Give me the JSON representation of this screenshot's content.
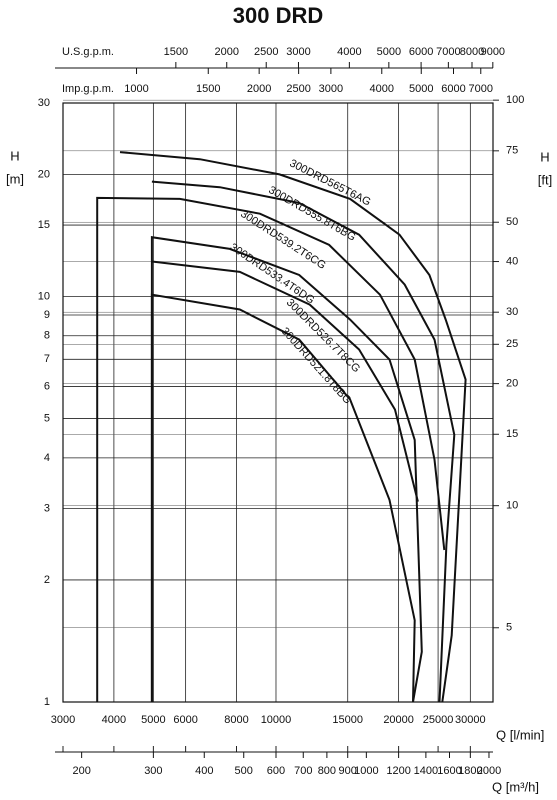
{
  "chart_data": {
    "type": "line",
    "title": "300 DRD",
    "x_label": "Q [l/min]",
    "y_label_symbol": "H",
    "y_label_unit": "[m]",
    "y2_label_symbol": "H",
    "y2_label_unit": "[ft]",
    "log_x": true,
    "log_y": true,
    "grid": true,
    "xlim": [
      3000,
      34100
    ],
    "xticks": [
      3000,
      4000,
      5000,
      6000,
      8000,
      10000,
      15000,
      20000,
      25000,
      30000
    ],
    "ylim": [
      1,
      30
    ],
    "yticks": [
      1,
      2,
      3,
      4,
      5,
      6,
      7,
      8,
      9,
      10,
      15,
      20,
      30
    ],
    "y2lim": [
      3.28,
      98.4
    ],
    "y2ticks": [
      5,
      10,
      15,
      20,
      25,
      30,
      40,
      50,
      75,
      100
    ],
    "top_axes": [
      {
        "label": "U.S.g.p.m.",
        "xlim": [
          792.6,
          9009
        ],
        "xticks": [
          1500,
          2000,
          2500,
          3000,
          4000,
          5000,
          6000,
          7000,
          8000,
          9000
        ]
      },
      {
        "label": "Imp.g.p.m.",
        "xlim": [
          659.9,
          7501
        ],
        "xticks": [
          1000,
          1500,
          2000,
          2500,
          3000,
          4000,
          5000,
          6000,
          7000
        ]
      }
    ],
    "bottom_axis_2": {
      "label": "Q [m³/h]",
      "xlim": [
        180,
        2046
      ],
      "xticks": [
        200,
        300,
        400,
        500,
        600,
        700,
        800,
        900,
        1000,
        1200,
        1400,
        1600,
        1800,
        2000
      ]
    },
    "series": [
      {
        "name": "300DRD565T6AG",
        "color": "#111111",
        "x": [
          4140,
          6500,
          10200,
          15200,
          20100,
          23800,
          26100,
          29200,
          27000,
          25600
        ],
        "values": [
          22.7,
          21.8,
          20.0,
          17.4,
          14.2,
          11.3,
          8.77,
          6.24,
          1.46,
          1
        ]
      },
      {
        "name": "300DRD555.8T6BG",
        "color": "#111111",
        "x": [
          4960,
          7280,
          11400,
          16000,
          20700,
          24500,
          27400,
          26200,
          25200
        ],
        "values": [
          19.2,
          18.6,
          17.0,
          14.2,
          10.7,
          7.83,
          4.56,
          2.44,
          1
        ]
      },
      {
        "name": "300DRD539.2T6CG",
        "color": "#111111",
        "x": [
          3640,
          3640,
          5810,
          9130,
          13500,
          18000,
          21900,
          24500,
          25900
        ],
        "values": [
          1,
          17.5,
          17.4,
          16.0,
          13.4,
          10.1,
          6.99,
          3.96,
          2.37
        ]
      },
      {
        "name": "300DRD533.4T6DG",
        "color": "#111111",
        "x": [
          4960,
          4960,
          7700,
          11400,
          15200,
          19000,
          21900,
          22800,
          21700
        ],
        "values": [
          1,
          14.0,
          13.1,
          11.3,
          8.77,
          6.99,
          4.43,
          1.33,
          1
        ]
      },
      {
        "name": "300DRD526.7T8CG",
        "color": "#111111",
        "x": [
          4960,
          8150,
          12100,
          16000,
          19600,
          22300
        ],
        "values": [
          12.2,
          11.5,
          9.55,
          7.4,
          5.26,
          3.12
        ]
      },
      {
        "name": "300DRD521.8T8BG",
        "color": "#111111",
        "x": [
          4960,
          4960,
          8150,
          11400,
          15200,
          19000,
          21900,
          21700
        ],
        "values": [
          1,
          10.1,
          9.29,
          7.83,
          5.57,
          3.15,
          1.59,
          1
        ]
      }
    ]
  }
}
